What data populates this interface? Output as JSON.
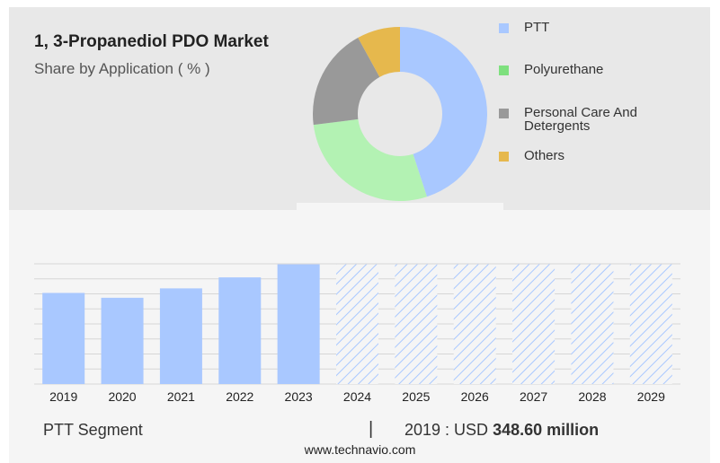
{
  "title": "1, 3-Propanediol PDO Market",
  "subtitle": "Share by Application ( % )",
  "colors": {
    "PTT": "#a9c8ff",
    "Polyurethane": "#b3f2b3",
    "Personal Care And Detergents": "#999999",
    "Others": "#e6b84d",
    "forecast_hatch": "#a9c8ff"
  },
  "legend": [
    {
      "label": "PTT",
      "color": "#a9c8ff"
    },
    {
      "label": "Polyurethane",
      "color": "#7ee07e"
    },
    {
      "label": "Personal Care And Detergents",
      "color": "#999999"
    },
    {
      "label": "Others",
      "color": "#e6b84d"
    }
  ],
  "chart_data": [
    {
      "type": "pie",
      "title": "Share by Application ( % )",
      "categories": [
        "PTT",
        "Polyurethane",
        "Personal Care And Detergents",
        "Others"
      ],
      "values": [
        45,
        28,
        19,
        8
      ],
      "donut": true
    },
    {
      "type": "bar",
      "categories": [
        "2019",
        "2020",
        "2021",
        "2022",
        "2023",
        "2024",
        "2025",
        "2026",
        "2027",
        "2028",
        "2029"
      ],
      "values": [
        348.6,
        330,
        366,
        408,
        458,
        458,
        458,
        458,
        458,
        458,
        458
      ],
      "forecast_from": "2024",
      "series_name": "PTT Segment",
      "ylim": [
        0,
        460
      ],
      "grid": true
    }
  ],
  "footer": {
    "segment_label": "PTT Segment",
    "separator": "|",
    "year_label": "2019 : USD",
    "value_label": "348.60 million"
  },
  "source": "www.technavio.com"
}
